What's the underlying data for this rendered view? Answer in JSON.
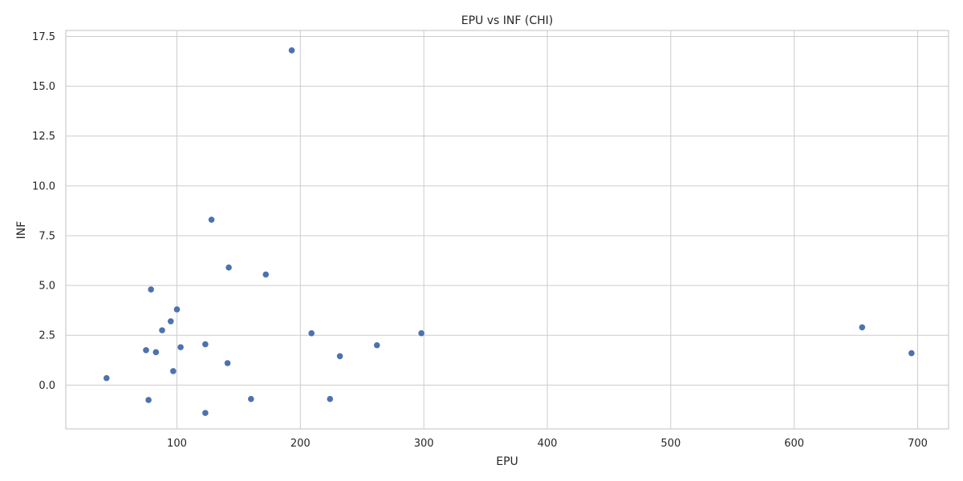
{
  "chart_data": {
    "type": "scatter",
    "title": "EPU vs INF (CHI)",
    "xlabel": "EPU",
    "ylabel": "INF",
    "xlim": [
      10,
      725
    ],
    "ylim": [
      -2.2,
      17.8
    ],
    "xticks": [
      100,
      200,
      300,
      400,
      500,
      600,
      700
    ],
    "yticks": [
      0.0,
      2.5,
      5.0,
      7.5,
      10.0,
      12.5,
      15.0,
      17.5
    ],
    "ytick_labels": [
      "0.0",
      "2.5",
      "5.0",
      "7.5",
      "10.0",
      "12.5",
      "15.0",
      "17.5"
    ],
    "grid": true,
    "marker_color": "#4c72b0",
    "points": [
      {
        "x": 193,
        "y": 16.8
      },
      {
        "x": 128,
        "y": 8.3
      },
      {
        "x": 142,
        "y": 5.9
      },
      {
        "x": 172,
        "y": 5.55
      },
      {
        "x": 79,
        "y": 4.8
      },
      {
        "x": 100,
        "y": 3.8
      },
      {
        "x": 95,
        "y": 3.2
      },
      {
        "x": 88,
        "y": 2.75
      },
      {
        "x": 209,
        "y": 2.6
      },
      {
        "x": 298,
        "y": 2.6
      },
      {
        "x": 655,
        "y": 2.9
      },
      {
        "x": 123,
        "y": 2.05
      },
      {
        "x": 262,
        "y": 2.0
      },
      {
        "x": 103,
        "y": 1.9
      },
      {
        "x": 75,
        "y": 1.75
      },
      {
        "x": 83,
        "y": 1.65
      },
      {
        "x": 695,
        "y": 1.6
      },
      {
        "x": 232,
        "y": 1.45
      },
      {
        "x": 141,
        "y": 1.1
      },
      {
        "x": 97,
        "y": 0.7
      },
      {
        "x": 43,
        "y": 0.35
      },
      {
        "x": 77,
        "y": -0.75
      },
      {
        "x": 160,
        "y": -0.7
      },
      {
        "x": 224,
        "y": -0.7
      },
      {
        "x": 123,
        "y": -1.4
      }
    ]
  }
}
